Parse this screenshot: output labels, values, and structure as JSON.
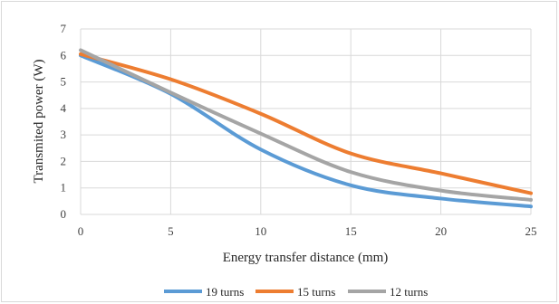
{
  "chart_data": {
    "type": "line",
    "xlabel": "Energy transfer distance (mm)",
    "ylabel": "Transmited power (W)",
    "xlim": [
      0,
      25
    ],
    "ylim": [
      0,
      7
    ],
    "x_ticks": [
      "0",
      "5",
      "10",
      "15",
      "20",
      "25"
    ],
    "y_ticks": [
      "0",
      "1",
      "2",
      "3",
      "4",
      "5",
      "6",
      "7"
    ],
    "grid": true,
    "legend_position": "bottom",
    "x": [
      0,
      5,
      10,
      15,
      20,
      25
    ],
    "series": [
      {
        "name": "19 turns",
        "color": "#5b9bd5",
        "values": [
          6.0,
          4.55,
          2.45,
          1.1,
          0.6,
          0.3
        ]
      },
      {
        "name": "15 turns",
        "color": "#ed7d31",
        "values": [
          6.05,
          5.1,
          3.8,
          2.3,
          1.55,
          0.8
        ]
      },
      {
        "name": "12 turns",
        "color": "#a5a5a5",
        "values": [
          6.2,
          4.6,
          3.05,
          1.6,
          0.9,
          0.55
        ]
      }
    ]
  }
}
